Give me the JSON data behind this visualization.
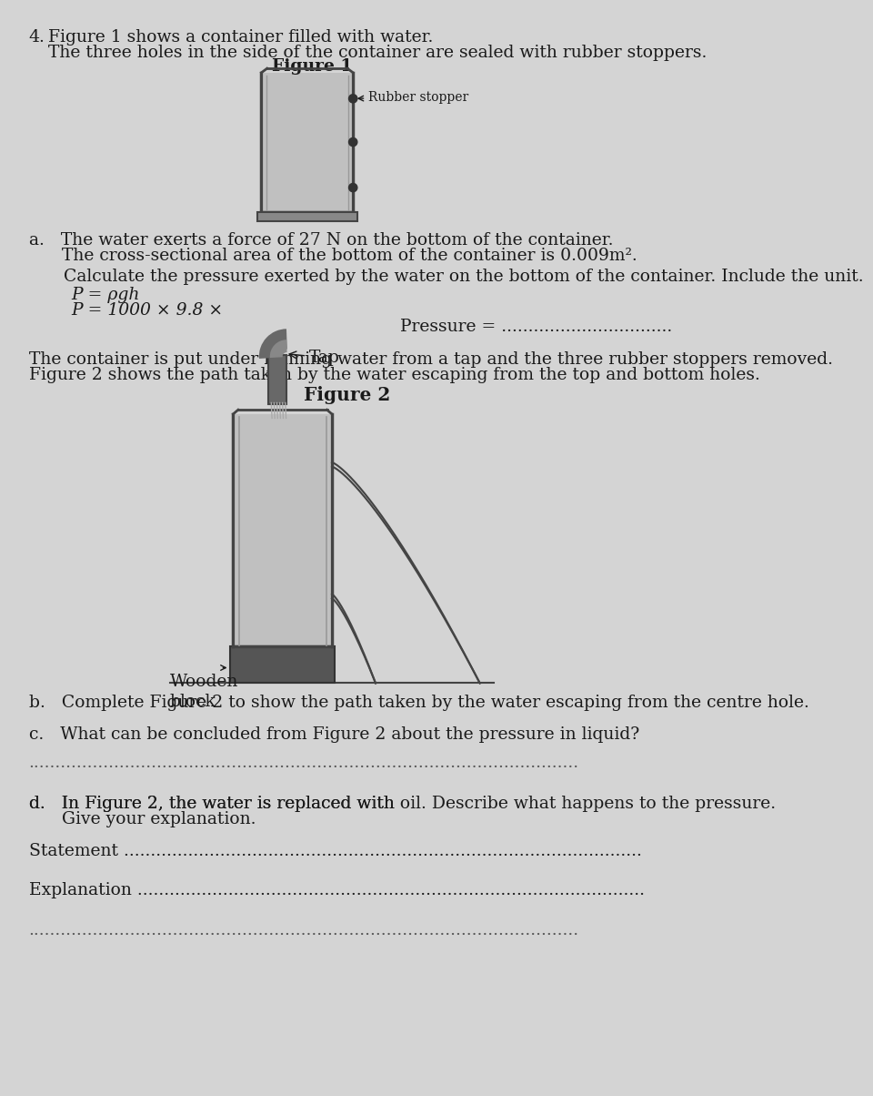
{
  "bg_color": "#d4d4d4",
  "text_color": "#1a1a1a",
  "title_q": "4.",
  "line1": "Figure 1 shows a container filled with water.",
  "line2": "The three holes in the side of the container are sealed with rubber stoppers.",
  "fig1_label": "Figure 1",
  "rubber_stopper_label": "Rubber stopper",
  "part_a_line1": "a.   The water exerts a force of 27 N on the bottom of the container.",
  "part_a_line2": "      The cross-sectional area of the bottom of the container is 0.009m².",
  "part_a_line3": "Calculate the pressure exerted by the water on the bottom of the container. Include the unit.",
  "formula1": "P = ρgh",
  "formula2": "P = 1000 × 9.8 ×",
  "pressure_label": "Pressure = ................................",
  "para1": "The container is put under running water from a tap and the three rubber stoppers removed.",
  "para2": "Figure 2 shows the path taken by the water escaping from the top and bottom holes.",
  "fig2_label": "Figure 2",
  "tap_label": "Tap",
  "wooden_block_label": "Wooden\nblock",
  "part_b": "b.   Complete Figure 2 to show the path taken by the water escaping from the centre hole.",
  "part_c": "c.   What can be concluded from Figure 2 about the pressure in liquid?",
  "dots_line1": ".......................................................................................................",
  "part_d_line1": "d.   In Figure 2, the water is replaced with oil. Describe what happens to the pressure.",
  "part_d_line2": "      Give your explanation.",
  "statement_label": "Statement .................................................................................................",
  "explanation_label": "Explanation ...............................................................................................",
  "extra_dots": ".......................................................................................................",
  "container_border": "#444444",
  "container_fill": "#c0c0c0",
  "wooden_block_color": "#555555",
  "tap_color": "#666666",
  "jet_color": "#444444"
}
